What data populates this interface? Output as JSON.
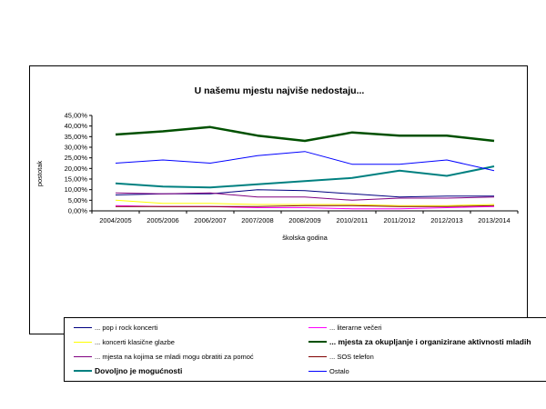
{
  "chart_data": {
    "type": "line",
    "title": "U našemu mjestu najviše nedostaju...",
    "xlabel": "školska godina",
    "ylabel": "postotak",
    "ylim": [
      0,
      45
    ],
    "yticks": [
      "0,00%",
      "5,00%",
      "10,00%",
      "15,00%",
      "20,00%",
      "25,00%",
      "30,00%",
      "35,00%",
      "40,00%",
      "45,00%"
    ],
    "categories": [
      "2004/2005",
      "2005/2006",
      "2006/2007",
      "2007/2008",
      "2008/2009",
      "2010/2011",
      "2011/2012",
      "2012/2013",
      "2013/2014"
    ],
    "grid": false,
    "legend_position": "bottom",
    "series": [
      {
        "name": "... pop i rock koncerti",
        "color": "#000080",
        "width": 1,
        "values": [
          7.5,
          8,
          8,
          10,
          9.5,
          8,
          6.5,
          7,
          7
        ]
      },
      {
        "name": "... literarne večeri",
        "color": "#ff00ff",
        "width": 1,
        "values": [
          2.5,
          2,
          2,
          1.5,
          1.5,
          1,
          1,
          1.5,
          2
        ]
      },
      {
        "name": "... koncerti klasične glazbe",
        "color": "#ffff00",
        "width": 1,
        "values": [
          5,
          3.5,
          3.5,
          3,
          3,
          3,
          2.5,
          2.5,
          3
        ]
      },
      {
        "name": "... mjesta za okupljanje i organizirane aktivnosti mladih",
        "color": "#005000",
        "width": 2.5,
        "bold": true,
        "values": [
          36,
          37.5,
          39.5,
          35.5,
          33,
          37,
          35.5,
          35.5,
          33
        ]
      },
      {
        "name": "... mjesta na kojima se mladi mogu obratiti za pomoć",
        "color": "#800080",
        "width": 1,
        "values": [
          8.5,
          8,
          8.5,
          6.5,
          6.5,
          5,
          6,
          6,
          6.5
        ]
      },
      {
        "name": "... SOS telefon",
        "color": "#800000",
        "width": 1,
        "values": [
          2,
          2,
          2,
          2,
          2.5,
          2.5,
          2,
          2,
          2.5
        ]
      },
      {
        "name": "Dovoljno je mogućnosti",
        "color": "#008080",
        "width": 2,
        "bold": true,
        "values": [
          13,
          11.5,
          11,
          12.5,
          14,
          15.5,
          19,
          16.5,
          21
        ]
      },
      {
        "name": "Ostalo",
        "color": "#0000ff",
        "width": 1,
        "values": [
          22.5,
          24,
          22.5,
          26,
          28,
          22,
          22,
          24,
          19
        ]
      }
    ]
  }
}
